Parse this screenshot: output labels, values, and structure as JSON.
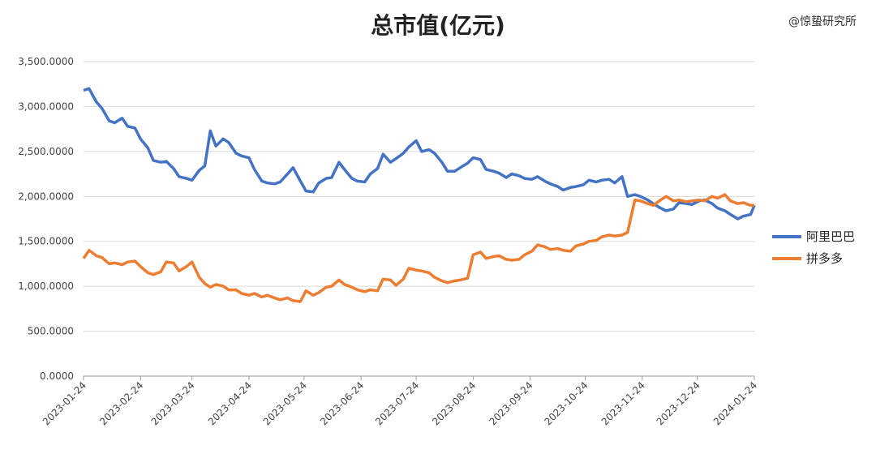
{
  "watermark": "@惊蛰研究所",
  "chart_data": {
    "type": "line",
    "title": "总市值(亿元)",
    "ylim": [
      0,
      3500
    ],
    "y_ticks": [
      "0.0000",
      "500.0000",
      "1,000.0000",
      "1,500.0000",
      "2,000.0000",
      "2,500.0000",
      "3,000.0000",
      "3,500.0000"
    ],
    "x_ticks": [
      "2023-01-24",
      "2023-02-24",
      "2023-03-24",
      "2023-04-24",
      "2023-05-24",
      "2023-06-24",
      "2023-07-24",
      "2023-08-24",
      "2023-09-24",
      "2023-10-24",
      "2023-11-24",
      "2023-12-24",
      "2024-01-24"
    ],
    "grid": true,
    "legend_position": "right",
    "colors": {
      "阿里巴巴": "#4472C4",
      "拼多多": "#ED7D31"
    },
    "series": [
      {
        "name": "阿里巴巴",
        "points": [
          [
            "2023-01-24",
            3180
          ],
          [
            "2023-01-27",
            3200
          ],
          [
            "2023-01-31",
            3050
          ],
          [
            "2023-02-03",
            2980
          ],
          [
            "2023-02-07",
            2840
          ],
          [
            "2023-02-10",
            2820
          ],
          [
            "2023-02-14",
            2870
          ],
          [
            "2023-02-17",
            2780
          ],
          [
            "2023-02-21",
            2760
          ],
          [
            "2023-02-24",
            2640
          ],
          [
            "2023-02-28",
            2540
          ],
          [
            "2023-03-03",
            2400
          ],
          [
            "2023-03-07",
            2380
          ],
          [
            "2023-03-10",
            2390
          ],
          [
            "2023-03-14",
            2310
          ],
          [
            "2023-03-17",
            2220
          ],
          [
            "2023-03-21",
            2200
          ],
          [
            "2023-03-24",
            2180
          ],
          [
            "2023-03-28",
            2290
          ],
          [
            "2023-03-31",
            2340
          ],
          [
            "2023-04-03",
            2730
          ],
          [
            "2023-04-06",
            2560
          ],
          [
            "2023-04-10",
            2640
          ],
          [
            "2023-04-13",
            2600
          ],
          [
            "2023-04-17",
            2480
          ],
          [
            "2023-04-20",
            2450
          ],
          [
            "2023-04-24",
            2430
          ],
          [
            "2023-04-27",
            2300
          ],
          [
            "2023-05-01",
            2170
          ],
          [
            "2023-05-04",
            2150
          ],
          [
            "2023-05-08",
            2140
          ],
          [
            "2023-05-11",
            2160
          ],
          [
            "2023-05-15",
            2250
          ],
          [
            "2023-05-18",
            2320
          ],
          [
            "2023-05-22",
            2170
          ],
          [
            "2023-05-25",
            2060
          ],
          [
            "2023-05-29",
            2050
          ],
          [
            "2023-06-01",
            2150
          ],
          [
            "2023-06-05",
            2200
          ],
          [
            "2023-06-08",
            2210
          ],
          [
            "2023-06-12",
            2380
          ],
          [
            "2023-06-15",
            2300
          ],
          [
            "2023-06-19",
            2200
          ],
          [
            "2023-06-22",
            2170
          ],
          [
            "2023-06-26",
            2160
          ],
          [
            "2023-06-29",
            2250
          ],
          [
            "2023-07-03",
            2310
          ],
          [
            "2023-07-06",
            2470
          ],
          [
            "2023-07-10",
            2380
          ],
          [
            "2023-07-13",
            2420
          ],
          [
            "2023-07-17",
            2480
          ],
          [
            "2023-07-20",
            2550
          ],
          [
            "2023-07-24",
            2620
          ],
          [
            "2023-07-27",
            2500
          ],
          [
            "2023-07-31",
            2520
          ],
          [
            "2023-08-03",
            2480
          ],
          [
            "2023-08-07",
            2380
          ],
          [
            "2023-08-10",
            2280
          ],
          [
            "2023-08-14",
            2280
          ],
          [
            "2023-08-17",
            2320
          ],
          [
            "2023-08-21",
            2370
          ],
          [
            "2023-08-24",
            2430
          ],
          [
            "2023-08-28",
            2410
          ],
          [
            "2023-08-31",
            2300
          ],
          [
            "2023-09-04",
            2280
          ],
          [
            "2023-09-07",
            2260
          ],
          [
            "2023-09-11",
            2210
          ],
          [
            "2023-09-14",
            2250
          ],
          [
            "2023-09-18",
            2230
          ],
          [
            "2023-09-21",
            2200
          ],
          [
            "2023-09-25",
            2190
          ],
          [
            "2023-09-28",
            2220
          ],
          [
            "2023-10-02",
            2170
          ],
          [
            "2023-10-05",
            2140
          ],
          [
            "2023-10-09",
            2110
          ],
          [
            "2023-10-12",
            2070
          ],
          [
            "2023-10-16",
            2100
          ],
          [
            "2023-10-19",
            2110
          ],
          [
            "2023-10-23",
            2130
          ],
          [
            "2023-10-26",
            2180
          ],
          [
            "2023-10-30",
            2160
          ],
          [
            "2023-11-02",
            2180
          ],
          [
            "2023-11-06",
            2190
          ],
          [
            "2023-11-09",
            2150
          ],
          [
            "2023-11-13",
            2220
          ],
          [
            "2023-11-16",
            2000
          ],
          [
            "2023-11-20",
            2020
          ],
          [
            "2023-11-23",
            2000
          ],
          [
            "2023-11-27",
            1960
          ],
          [
            "2023-11-30",
            1920
          ],
          [
            "2023-12-04",
            1870
          ],
          [
            "2023-12-07",
            1840
          ],
          [
            "2023-12-11",
            1860
          ],
          [
            "2023-12-14",
            1930
          ],
          [
            "2023-12-18",
            1920
          ],
          [
            "2023-12-21",
            1910
          ],
          [
            "2023-12-25",
            1950
          ],
          [
            "2023-12-28",
            1960
          ],
          [
            "2024-01-01",
            1920
          ],
          [
            "2024-01-04",
            1870
          ],
          [
            "2024-01-08",
            1840
          ],
          [
            "2024-01-11",
            1800
          ],
          [
            "2024-01-15",
            1750
          ],
          [
            "2024-01-18",
            1780
          ],
          [
            "2024-01-22",
            1800
          ],
          [
            "2024-01-24",
            1900
          ]
        ]
      },
      {
        "name": "拼多多",
        "points": [
          [
            "2023-01-24",
            1310
          ],
          [
            "2023-01-27",
            1400
          ],
          [
            "2023-01-31",
            1340
          ],
          [
            "2023-02-03",
            1320
          ],
          [
            "2023-02-07",
            1250
          ],
          [
            "2023-02-10",
            1260
          ],
          [
            "2023-02-14",
            1240
          ],
          [
            "2023-02-17",
            1270
          ],
          [
            "2023-02-21",
            1280
          ],
          [
            "2023-02-24",
            1220
          ],
          [
            "2023-02-28",
            1150
          ],
          [
            "2023-03-03",
            1130
          ],
          [
            "2023-03-07",
            1160
          ],
          [
            "2023-03-10",
            1270
          ],
          [
            "2023-03-14",
            1260
          ],
          [
            "2023-03-17",
            1170
          ],
          [
            "2023-03-21",
            1220
          ],
          [
            "2023-03-24",
            1270
          ],
          [
            "2023-03-28",
            1100
          ],
          [
            "2023-03-31",
            1030
          ],
          [
            "2023-04-03",
            990
          ],
          [
            "2023-04-06",
            1020
          ],
          [
            "2023-04-10",
            1000
          ],
          [
            "2023-04-13",
            960
          ],
          [
            "2023-04-17",
            960
          ],
          [
            "2023-04-20",
            920
          ],
          [
            "2023-04-24",
            900
          ],
          [
            "2023-04-27",
            920
          ],
          [
            "2023-05-01",
            880
          ],
          [
            "2023-05-04",
            900
          ],
          [
            "2023-05-08",
            870
          ],
          [
            "2023-05-11",
            850
          ],
          [
            "2023-05-15",
            870
          ],
          [
            "2023-05-18",
            840
          ],
          [
            "2023-05-22",
            830
          ],
          [
            "2023-05-25",
            950
          ],
          [
            "2023-05-29",
            900
          ],
          [
            "2023-06-01",
            930
          ],
          [
            "2023-06-05",
            990
          ],
          [
            "2023-06-08",
            1000
          ],
          [
            "2023-06-12",
            1070
          ],
          [
            "2023-06-15",
            1020
          ],
          [
            "2023-06-19",
            990
          ],
          [
            "2023-06-22",
            960
          ],
          [
            "2023-06-26",
            940
          ],
          [
            "2023-06-29",
            960
          ],
          [
            "2023-07-03",
            950
          ],
          [
            "2023-07-06",
            1080
          ],
          [
            "2023-07-10",
            1070
          ],
          [
            "2023-07-13",
            1010
          ],
          [
            "2023-07-17",
            1080
          ],
          [
            "2023-07-20",
            1200
          ],
          [
            "2023-07-24",
            1180
          ],
          [
            "2023-07-27",
            1170
          ],
          [
            "2023-07-31",
            1150
          ],
          [
            "2023-08-03",
            1100
          ],
          [
            "2023-08-07",
            1060
          ],
          [
            "2023-08-10",
            1040
          ],
          [
            "2023-08-14",
            1060
          ],
          [
            "2023-08-17",
            1070
          ],
          [
            "2023-08-21",
            1090
          ],
          [
            "2023-08-24",
            1350
          ],
          [
            "2023-08-28",
            1380
          ],
          [
            "2023-08-31",
            1310
          ],
          [
            "2023-09-04",
            1330
          ],
          [
            "2023-09-07",
            1340
          ],
          [
            "2023-09-11",
            1300
          ],
          [
            "2023-09-14",
            1290
          ],
          [
            "2023-09-18",
            1300
          ],
          [
            "2023-09-21",
            1350
          ],
          [
            "2023-09-25",
            1390
          ],
          [
            "2023-09-28",
            1460
          ],
          [
            "2023-10-02",
            1440
          ],
          [
            "2023-10-05",
            1410
          ],
          [
            "2023-10-09",
            1420
          ],
          [
            "2023-10-12",
            1400
          ],
          [
            "2023-10-16",
            1390
          ],
          [
            "2023-10-19",
            1450
          ],
          [
            "2023-10-23",
            1470
          ],
          [
            "2023-10-26",
            1500
          ],
          [
            "2023-10-30",
            1510
          ],
          [
            "2023-11-02",
            1550
          ],
          [
            "2023-11-06",
            1570
          ],
          [
            "2023-11-09",
            1560
          ],
          [
            "2023-11-13",
            1570
          ],
          [
            "2023-11-16",
            1600
          ],
          [
            "2023-11-20",
            1960
          ],
          [
            "2023-11-23",
            1950
          ],
          [
            "2023-11-27",
            1920
          ],
          [
            "2023-11-30",
            1900
          ],
          [
            "2023-12-04",
            1960
          ],
          [
            "2023-12-07",
            2000
          ],
          [
            "2023-12-11",
            1950
          ],
          [
            "2023-12-14",
            1960
          ],
          [
            "2023-12-18",
            1940
          ],
          [
            "2023-12-21",
            1950
          ],
          [
            "2023-12-25",
            1960
          ],
          [
            "2023-12-28",
            1950
          ],
          [
            "2024-01-01",
            2000
          ],
          [
            "2024-01-04",
            1980
          ],
          [
            "2024-01-08",
            2020
          ],
          [
            "2024-01-11",
            1950
          ],
          [
            "2024-01-15",
            1920
          ],
          [
            "2024-01-18",
            1930
          ],
          [
            "2024-01-22",
            1900
          ],
          [
            "2024-01-24",
            1900
          ]
        ]
      }
    ]
  }
}
